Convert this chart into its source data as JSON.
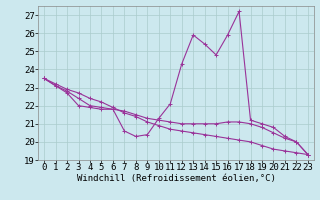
{
  "xlabel": "Windchill (Refroidissement éolien,°C)",
  "bg_color": "#cce8ee",
  "grid_color": "#aacccc",
  "line_color": "#993399",
  "xlim": [
    -0.5,
    23.5
  ],
  "ylim": [
    19,
    27.5
  ],
  "yticks": [
    19,
    20,
    21,
    22,
    23,
    24,
    25,
    26,
    27
  ],
  "xticks": [
    0,
    1,
    2,
    3,
    4,
    5,
    6,
    7,
    8,
    9,
    10,
    11,
    12,
    13,
    14,
    15,
    16,
    17,
    18,
    19,
    20,
    21,
    22,
    23
  ],
  "curve1_x": [
    0,
    1,
    2,
    3,
    4,
    5,
    6,
    7,
    8,
    9,
    10,
    11,
    12,
    13,
    14,
    15,
    16,
    17,
    18,
    19,
    20,
    21,
    22,
    23
  ],
  "curve1_y": [
    23.5,
    23.1,
    22.7,
    22.0,
    21.9,
    21.8,
    21.8,
    20.6,
    20.3,
    20.4,
    21.3,
    22.1,
    24.3,
    25.9,
    25.4,
    24.8,
    25.9,
    27.2,
    21.2,
    21.0,
    20.8,
    20.3,
    20.0,
    19.3
  ],
  "curve2_x": [
    0,
    1,
    2,
    3,
    4,
    5,
    6,
    7,
    8,
    9,
    10,
    11,
    12,
    13,
    14,
    15,
    16,
    17,
    18,
    19,
    20,
    21,
    22,
    23
  ],
  "curve2_y": [
    23.5,
    23.1,
    22.8,
    22.4,
    22.0,
    21.9,
    21.8,
    21.7,
    21.5,
    21.3,
    21.2,
    21.1,
    21.0,
    21.0,
    21.0,
    21.0,
    21.1,
    21.1,
    21.0,
    20.8,
    20.5,
    20.2,
    20.0,
    19.3
  ],
  "curve3_x": [
    0,
    1,
    2,
    3,
    4,
    5,
    6,
    7,
    8,
    9,
    10,
    11,
    12,
    13,
    14,
    15,
    16,
    17,
    18,
    19,
    20,
    21,
    22,
    23
  ],
  "curve3_y": [
    23.5,
    23.2,
    22.9,
    22.7,
    22.4,
    22.2,
    21.9,
    21.6,
    21.4,
    21.1,
    20.9,
    20.7,
    20.6,
    20.5,
    20.4,
    20.3,
    20.2,
    20.1,
    20.0,
    19.8,
    19.6,
    19.5,
    19.4,
    19.3
  ],
  "font_name": "monospace",
  "xlabel_fontsize": 6.5,
  "tick_fontsize": 6.5
}
